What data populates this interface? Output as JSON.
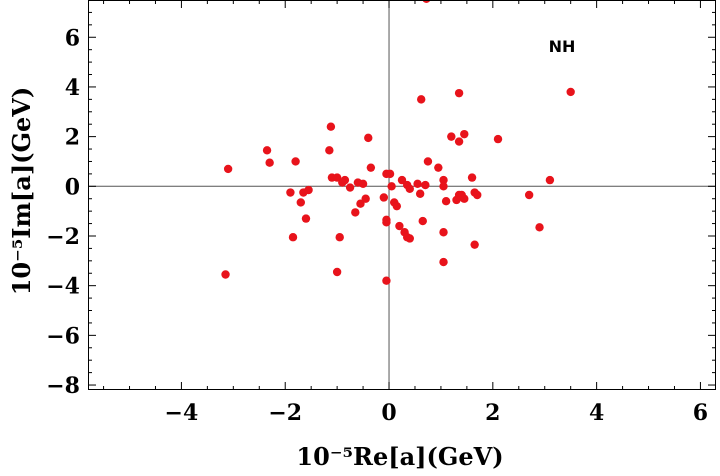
{
  "chart_data": {
    "type": "scatter",
    "title": "",
    "xlabel": "10⁻⁵Re[a](GeV)",
    "ylabel": "10⁻⁵Im[a](GeV)",
    "xlim": [
      -5.8,
      6.3
    ],
    "ylim": [
      -8.2,
      7.5
    ],
    "xticks": [
      -4,
      -2,
      0,
      2,
      4,
      6
    ],
    "yticks": [
      -8,
      -6,
      -4,
      -2,
      0,
      2,
      4,
      6
    ],
    "xtick_labels": [
      "−4",
      "−2",
      "0",
      "2",
      "4",
      "6"
    ],
    "ytick_labels": [
      "−8",
      "−6",
      "−4",
      "−2",
      "0",
      "2",
      "4",
      "6"
    ],
    "annotation": "NH",
    "point_color": "#e8131b",
    "series": [
      {
        "name": "NH",
        "x": [
          0.72,
          3.5,
          1.35,
          0.62,
          -1.12,
          -0.4,
          1.2,
          1.45,
          2.1,
          1.35,
          -2.35,
          -1.15,
          -2.3,
          -1.8,
          -3.1,
          -0.85,
          -1.1,
          -1.0,
          -0.35,
          -0.05,
          0.02,
          -0.5,
          -0.6,
          -0.75,
          -0.9,
          -1.55,
          -1.65,
          -1.9,
          -1.7,
          -0.55,
          -0.45,
          -0.1,
          0.05,
          0.25,
          0.35,
          0.55,
          0.7,
          0.75,
          0.95,
          1.05,
          1.35,
          1.45,
          1.65,
          1.7,
          1.4,
          1.3,
          1.6,
          1.05,
          1.1,
          0.1,
          0.15,
          0.4,
          0.6,
          0.3,
          -0.05,
          -0.05,
          0.2,
          0.35,
          1.05,
          0.65,
          -0.65,
          -1.6,
          -1.85,
          -0.95,
          -3.15,
          -1.0,
          -0.05,
          0.4,
          1.65,
          1.05,
          2.7,
          2.9,
          3.1
        ],
        "y": [
          7.55,
          3.8,
          3.75,
          3.5,
          2.4,
          1.95,
          2.0,
          2.1,
          1.9,
          1.8,
          1.45,
          1.45,
          0.95,
          1.0,
          0.7,
          0.25,
          0.35,
          0.35,
          0.75,
          0.5,
          0.5,
          0.1,
          0.15,
          -0.05,
          0.15,
          -0.15,
          -0.25,
          -0.25,
          -0.65,
          -0.7,
          -0.5,
          -0.45,
          0.0,
          0.25,
          0.05,
          0.1,
          0.05,
          1.0,
          0.75,
          0.25,
          -0.35,
          -0.5,
          -0.25,
          -0.35,
          -0.35,
          -0.55,
          0.35,
          0.0,
          -0.6,
          -0.65,
          -0.8,
          -0.1,
          -0.3,
          -1.85,
          -1.45,
          -1.35,
          -1.6,
          -2.05,
          -1.85,
          -1.4,
          -1.05,
          -1.3,
          -2.05,
          -2.05,
          -3.55,
          -3.45,
          -3.8,
          -2.1,
          -2.35,
          -3.05,
          -0.35,
          -1.65,
          0.25
        ]
      }
    ]
  }
}
